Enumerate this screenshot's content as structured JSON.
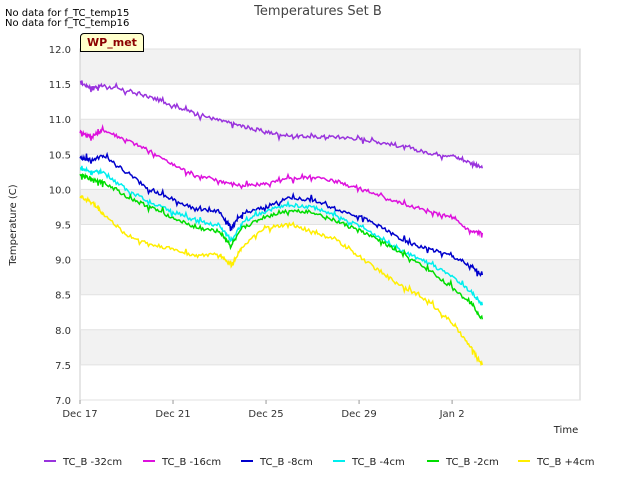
{
  "chart_data": {
    "type": "line",
    "title": "Temperatures Set B",
    "xlabel": "Time",
    "ylabel": "Temperature (C)",
    "ylim": [
      7.0,
      12.0
    ],
    "yticks": [
      "7.0",
      "7.5",
      "8.0",
      "8.5",
      "9.0",
      "9.5",
      "10.0",
      "10.5",
      "11.0",
      "11.5",
      "12.0"
    ],
    "xlim": [
      0,
      21.5
    ],
    "xtick_positions": [
      0,
      4,
      8,
      12,
      16
    ],
    "xticks": [
      "Dec 17",
      "Dec 21",
      "Dec 25",
      "Dec 29",
      "Jan 2"
    ],
    "grid": true,
    "legend_position": "bottom",
    "series": [
      {
        "name": "TC_B -32cm",
        "color": "#9933dd",
        "x": [
          0,
          0.5,
          1,
          2,
          3,
          4,
          5,
          6,
          7,
          8,
          9,
          10,
          11,
          12,
          13,
          14,
          15,
          16,
          16.8,
          17.3
        ],
        "y": [
          11.52,
          11.45,
          11.48,
          11.4,
          11.32,
          11.2,
          11.08,
          10.98,
          10.9,
          10.82,
          10.76,
          10.75,
          10.75,
          10.72,
          10.67,
          10.6,
          10.52,
          10.48,
          10.38,
          10.3
        ]
      },
      {
        "name": "TC_B -16cm",
        "color": "#dd11dd",
        "x": [
          0,
          0.5,
          1,
          2,
          3,
          4,
          5,
          6,
          7,
          8,
          9,
          10,
          11,
          12,
          13,
          14,
          15,
          16,
          16.8,
          17.3
        ],
        "y": [
          10.82,
          10.75,
          10.85,
          10.7,
          10.55,
          10.35,
          10.2,
          10.12,
          10.05,
          10.08,
          10.15,
          10.18,
          10.12,
          10.02,
          9.9,
          9.78,
          9.68,
          9.6,
          9.4,
          9.38
        ]
      },
      {
        "name": "TC_B -8cm",
        "color": "#0000cc",
        "x": [
          0,
          0.5,
          1,
          2,
          3,
          4,
          5,
          6,
          6.5,
          7,
          8,
          9,
          10,
          11,
          12,
          13,
          14,
          15,
          16,
          16.8,
          17.3
        ],
        "y": [
          10.45,
          10.42,
          10.48,
          10.25,
          10.0,
          9.85,
          9.72,
          9.68,
          9.45,
          9.65,
          9.75,
          9.88,
          9.85,
          9.72,
          9.62,
          9.45,
          9.25,
          9.15,
          9.05,
          8.9,
          8.78
        ]
      },
      {
        "name": "TC_B -4cm",
        "color": "#00eeee",
        "x": [
          0,
          0.5,
          1,
          2,
          3,
          4,
          5,
          6,
          6.5,
          7,
          8,
          9,
          10,
          11,
          12,
          13,
          14,
          15,
          16,
          16.8,
          17.3
        ],
        "y": [
          10.3,
          10.25,
          10.25,
          10.0,
          9.82,
          9.68,
          9.55,
          9.48,
          9.28,
          9.52,
          9.7,
          9.78,
          9.75,
          9.62,
          9.48,
          9.3,
          9.1,
          8.95,
          8.75,
          8.55,
          8.35
        ]
      },
      {
        "name": "TC_B -2cm",
        "color": "#00dd00",
        "x": [
          0,
          0.5,
          1,
          2,
          3,
          4,
          5,
          6,
          6.5,
          7,
          8,
          9,
          10,
          11,
          12,
          13,
          14,
          15,
          16,
          16.8,
          17.3
        ],
        "y": [
          10.2,
          10.15,
          10.1,
          9.9,
          9.75,
          9.6,
          9.45,
          9.4,
          9.2,
          9.45,
          9.62,
          9.7,
          9.68,
          9.55,
          9.42,
          9.25,
          9.05,
          8.85,
          8.6,
          8.4,
          8.15
        ]
      },
      {
        "name": "TC_B +4cm",
        "color": "#ffee00",
        "x": [
          0,
          0.5,
          1,
          2,
          3,
          4,
          5,
          6,
          6.5,
          7,
          8,
          9,
          10,
          11,
          12,
          13,
          14,
          15,
          16,
          16.8,
          17.3
        ],
        "y": [
          9.9,
          9.82,
          9.65,
          9.35,
          9.22,
          9.15,
          9.05,
          9.08,
          8.92,
          9.2,
          9.45,
          9.5,
          9.4,
          9.28,
          9.05,
          8.8,
          8.6,
          8.4,
          8.1,
          7.75,
          7.5
        ]
      }
    ]
  },
  "messages": {
    "no_data_1": "No data for f_TC_temp15",
    "no_data_2": "No data for f_TC_temp16"
  },
  "badge": {
    "label": "WP_met"
  }
}
